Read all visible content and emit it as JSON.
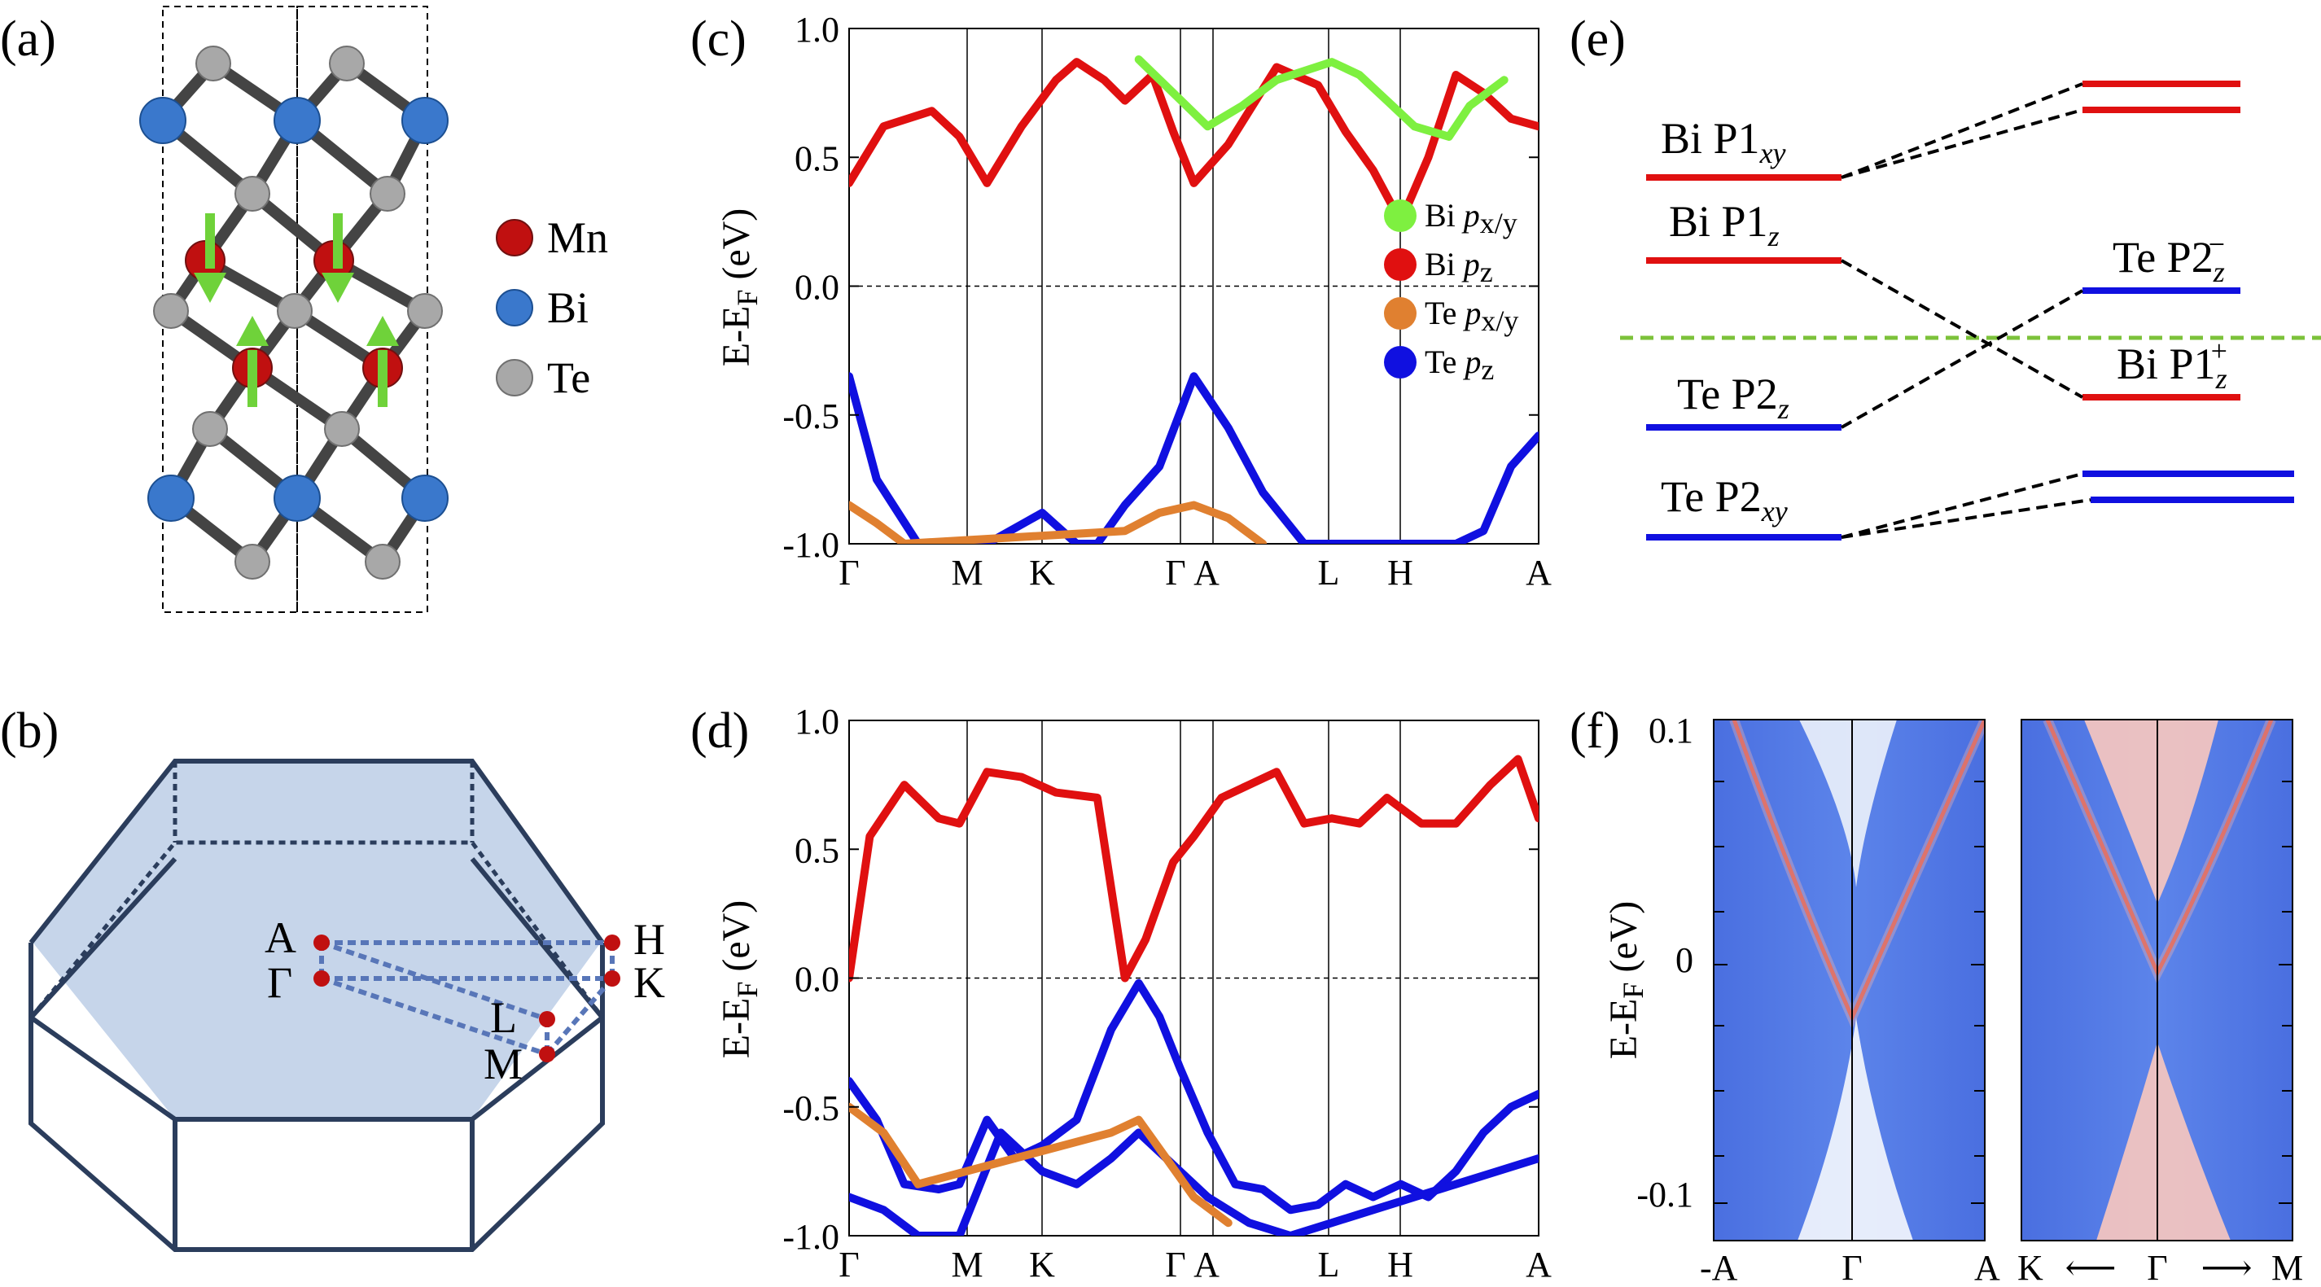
{
  "panels": {
    "a": {
      "label": "(a)",
      "legend": [
        {
          "name": "Mn",
          "color": "#c01010"
        },
        {
          "name": "Bi",
          "color": "#3a78cc"
        },
        {
          "name": "Te",
          "color": "#a8a8a8"
        }
      ]
    },
    "b": {
      "label": "(b)",
      "points": {
        "A": "A",
        "G": "Γ",
        "H": "H",
        "K": "K",
        "L": "L",
        "M": "M"
      }
    },
    "c": {
      "label": "(c)"
    },
    "d": {
      "label": "(d)"
    },
    "e": {
      "label": "(e)",
      "levels": {
        "bi_p1xy": {
          "main": "Bi P1",
          "sub": "xy"
        },
        "bi_p1z": {
          "main": "Bi P1",
          "sub": "z"
        },
        "te_p2z": {
          "main": "Te P2",
          "sub": "z"
        },
        "te_p2xy": {
          "main": "Te P2",
          "sub": "xy"
        },
        "te_p2z_minus": {
          "main": "Te P2",
          "sub": "z",
          "sup": "−"
        },
        "bi_p1z_plus": {
          "main": "Bi P1",
          "sub": "z",
          "sup": "+"
        }
      }
    },
    "f": {
      "label": "(f)",
      "ylabel_main": "E-E",
      "ylabel_sub": "F",
      "ylabel_unit": " (eV)",
      "yticks": [
        "0.1",
        "0",
        "-0.1"
      ],
      "left_x": [
        "-A",
        "Γ",
        "A"
      ],
      "right_x": [
        "K",
        "⟵",
        "Γ",
        "⟶",
        "M"
      ]
    }
  },
  "chart_data": [
    {
      "id": "c",
      "type": "line",
      "title": "",
      "ylabel_main": "E-E",
      "ylabel_sub": "F",
      "ylabel_unit": " (eV)",
      "ylim": [
        -1.0,
        1.0
      ],
      "yticks": [
        "1.0",
        "0.5",
        "0.0",
        "-0.5",
        "-1.0"
      ],
      "kpoints": [
        "Γ",
        "M",
        "K",
        "Γ",
        "A",
        "L",
        "H",
        "A"
      ],
      "legend": [
        {
          "main": "Bi ",
          "orb": "p",
          "sub": "x/y",
          "color": "#7ef040"
        },
        {
          "main": "Bi ",
          "orb": "p",
          "sub": "z",
          "color": "#e01010"
        },
        {
          "main": "Te ",
          "orb": "p",
          "sub": "x/y",
          "color": "#e08030"
        },
        {
          "main": "Te ",
          "orb": "p",
          "sub": "z",
          "color": "#1010e0"
        }
      ],
      "series": [
        {
          "name": "conduction",
          "color": "#e01010",
          "x": [
            0,
            0.05,
            0.12,
            0.16,
            0.2,
            0.25,
            0.3,
            0.33,
            0.37,
            0.4,
            0.44,
            0.47,
            0.5,
            0.55,
            0.62,
            0.68,
            0.72,
            0.76,
            0.8,
            0.84,
            0.88,
            0.92,
            0.96,
            1.0
          ],
          "y": [
            0.4,
            0.62,
            0.68,
            0.58,
            0.4,
            0.62,
            0.8,
            0.87,
            0.8,
            0.72,
            0.82,
            0.6,
            0.4,
            0.55,
            0.85,
            0.78,
            0.6,
            0.45,
            0.25,
            0.5,
            0.82,
            0.75,
            0.65,
            0.62
          ]
        },
        {
          "name": "bi_pxy",
          "color": "#7ef040",
          "x": [
            0.42,
            0.47,
            0.52,
            0.57,
            0.62,
            0.7,
            0.74,
            0.78,
            0.82,
            0.87,
            0.9,
            0.95
          ],
          "y": [
            0.88,
            0.75,
            0.62,
            0.7,
            0.8,
            0.87,
            0.82,
            0.72,
            0.62,
            0.58,
            0.7,
            0.8
          ]
        },
        {
          "name": "valence",
          "color": "#1010e0",
          "x": [
            0.0,
            0.04,
            0.1,
            0.14,
            0.2,
            0.28,
            0.33,
            0.36,
            0.4,
            0.45,
            0.5,
            0.55,
            0.6,
            0.66,
            0.72,
            0.78,
            0.83,
            0.88,
            0.92,
            0.96,
            1.0
          ],
          "y": [
            -0.35,
            -0.75,
            -1.0,
            -1.0,
            -1.0,
            -0.88,
            -1.0,
            -1.0,
            -0.85,
            -0.7,
            -0.35,
            -0.55,
            -0.8,
            -1.0,
            -1.0,
            -1.0,
            -1.0,
            -1.0,
            -0.95,
            -0.7,
            -0.58
          ]
        },
        {
          "name": "te_pxy",
          "color": "#e08030",
          "x": [
            0.0,
            0.04,
            0.08,
            0.4,
            0.45,
            0.5,
            0.55,
            0.6
          ],
          "y": [
            -0.85,
            -0.92,
            -1.0,
            -0.95,
            -0.88,
            -0.85,
            -0.9,
            -1.0
          ]
        }
      ]
    },
    {
      "id": "d",
      "type": "line",
      "title": "",
      "ylabel_main": "E-E",
      "ylabel_sub": "F",
      "ylabel_unit": " (eV)",
      "ylim": [
        -1.0,
        1.0
      ],
      "yticks": [
        "1.0",
        "0.5",
        "0.0",
        "-0.5",
        "-1.0"
      ],
      "kpoints": [
        "Γ",
        "M",
        "K",
        "Γ",
        "A",
        "L",
        "H",
        "A"
      ],
      "series": [
        {
          "name": "conduction",
          "color": "#e01010",
          "x": [
            0.0,
            0.03,
            0.08,
            0.13,
            0.16,
            0.2,
            0.25,
            0.3,
            0.36,
            0.4,
            0.43,
            0.45,
            0.47,
            0.5,
            0.54,
            0.58,
            0.62,
            0.66,
            0.7,
            0.74,
            0.78,
            0.83,
            0.88,
            0.93,
            0.97,
            1.0
          ],
          "y": [
            0.0,
            0.55,
            0.75,
            0.62,
            0.6,
            0.8,
            0.78,
            0.72,
            0.7,
            0.0,
            0.15,
            0.3,
            0.45,
            0.55,
            0.7,
            0.75,
            0.8,
            0.6,
            0.62,
            0.6,
            0.7,
            0.6,
            0.6,
            0.75,
            0.85,
            0.62
          ]
        },
        {
          "name": "valence_top",
          "color": "#1010e0",
          "x": [
            0.0,
            0.04,
            0.08,
            0.13,
            0.16,
            0.2,
            0.24,
            0.28,
            0.33,
            0.38,
            0.42,
            0.45,
            0.48,
            0.52,
            0.56,
            0.6,
            0.64,
            0.68,
            0.72,
            0.76,
            0.8,
            0.84,
            0.88,
            0.92,
            0.96,
            1.0
          ],
          "y": [
            -0.4,
            -0.55,
            -0.8,
            -0.82,
            -0.8,
            -0.55,
            -0.7,
            -0.65,
            -0.55,
            -0.2,
            -0.02,
            -0.15,
            -0.35,
            -0.6,
            -0.8,
            -0.82,
            -0.9,
            -0.88,
            -0.8,
            -0.85,
            -0.8,
            -0.85,
            -0.75,
            -0.6,
            -0.5,
            -0.45
          ]
        },
        {
          "name": "valence_low",
          "color": "#1010e0",
          "x": [
            0.0,
            0.05,
            0.1,
            0.16,
            0.22,
            0.28,
            0.33,
            0.38,
            0.42,
            0.46,
            0.52,
            0.58,
            0.64,
            0.7,
            0.76,
            0.82,
            0.88,
            0.94,
            1.0
          ],
          "y": [
            -0.85,
            -0.9,
            -1.0,
            -1.0,
            -0.6,
            -0.75,
            -0.8,
            -0.7,
            -0.6,
            -0.7,
            -0.85,
            -0.95,
            -1.0,
            -0.95,
            -0.9,
            -0.85,
            -0.8,
            -0.75,
            -0.7
          ]
        },
        {
          "name": "te_pxy",
          "color": "#e08030",
          "x": [
            0.0,
            0.05,
            0.1,
            0.38,
            0.42,
            0.46,
            0.5,
            0.55
          ],
          "y": [
            -0.5,
            -0.6,
            -0.8,
            -0.6,
            -0.55,
            -0.7,
            -0.85,
            -0.95
          ]
        }
      ]
    }
  ]
}
